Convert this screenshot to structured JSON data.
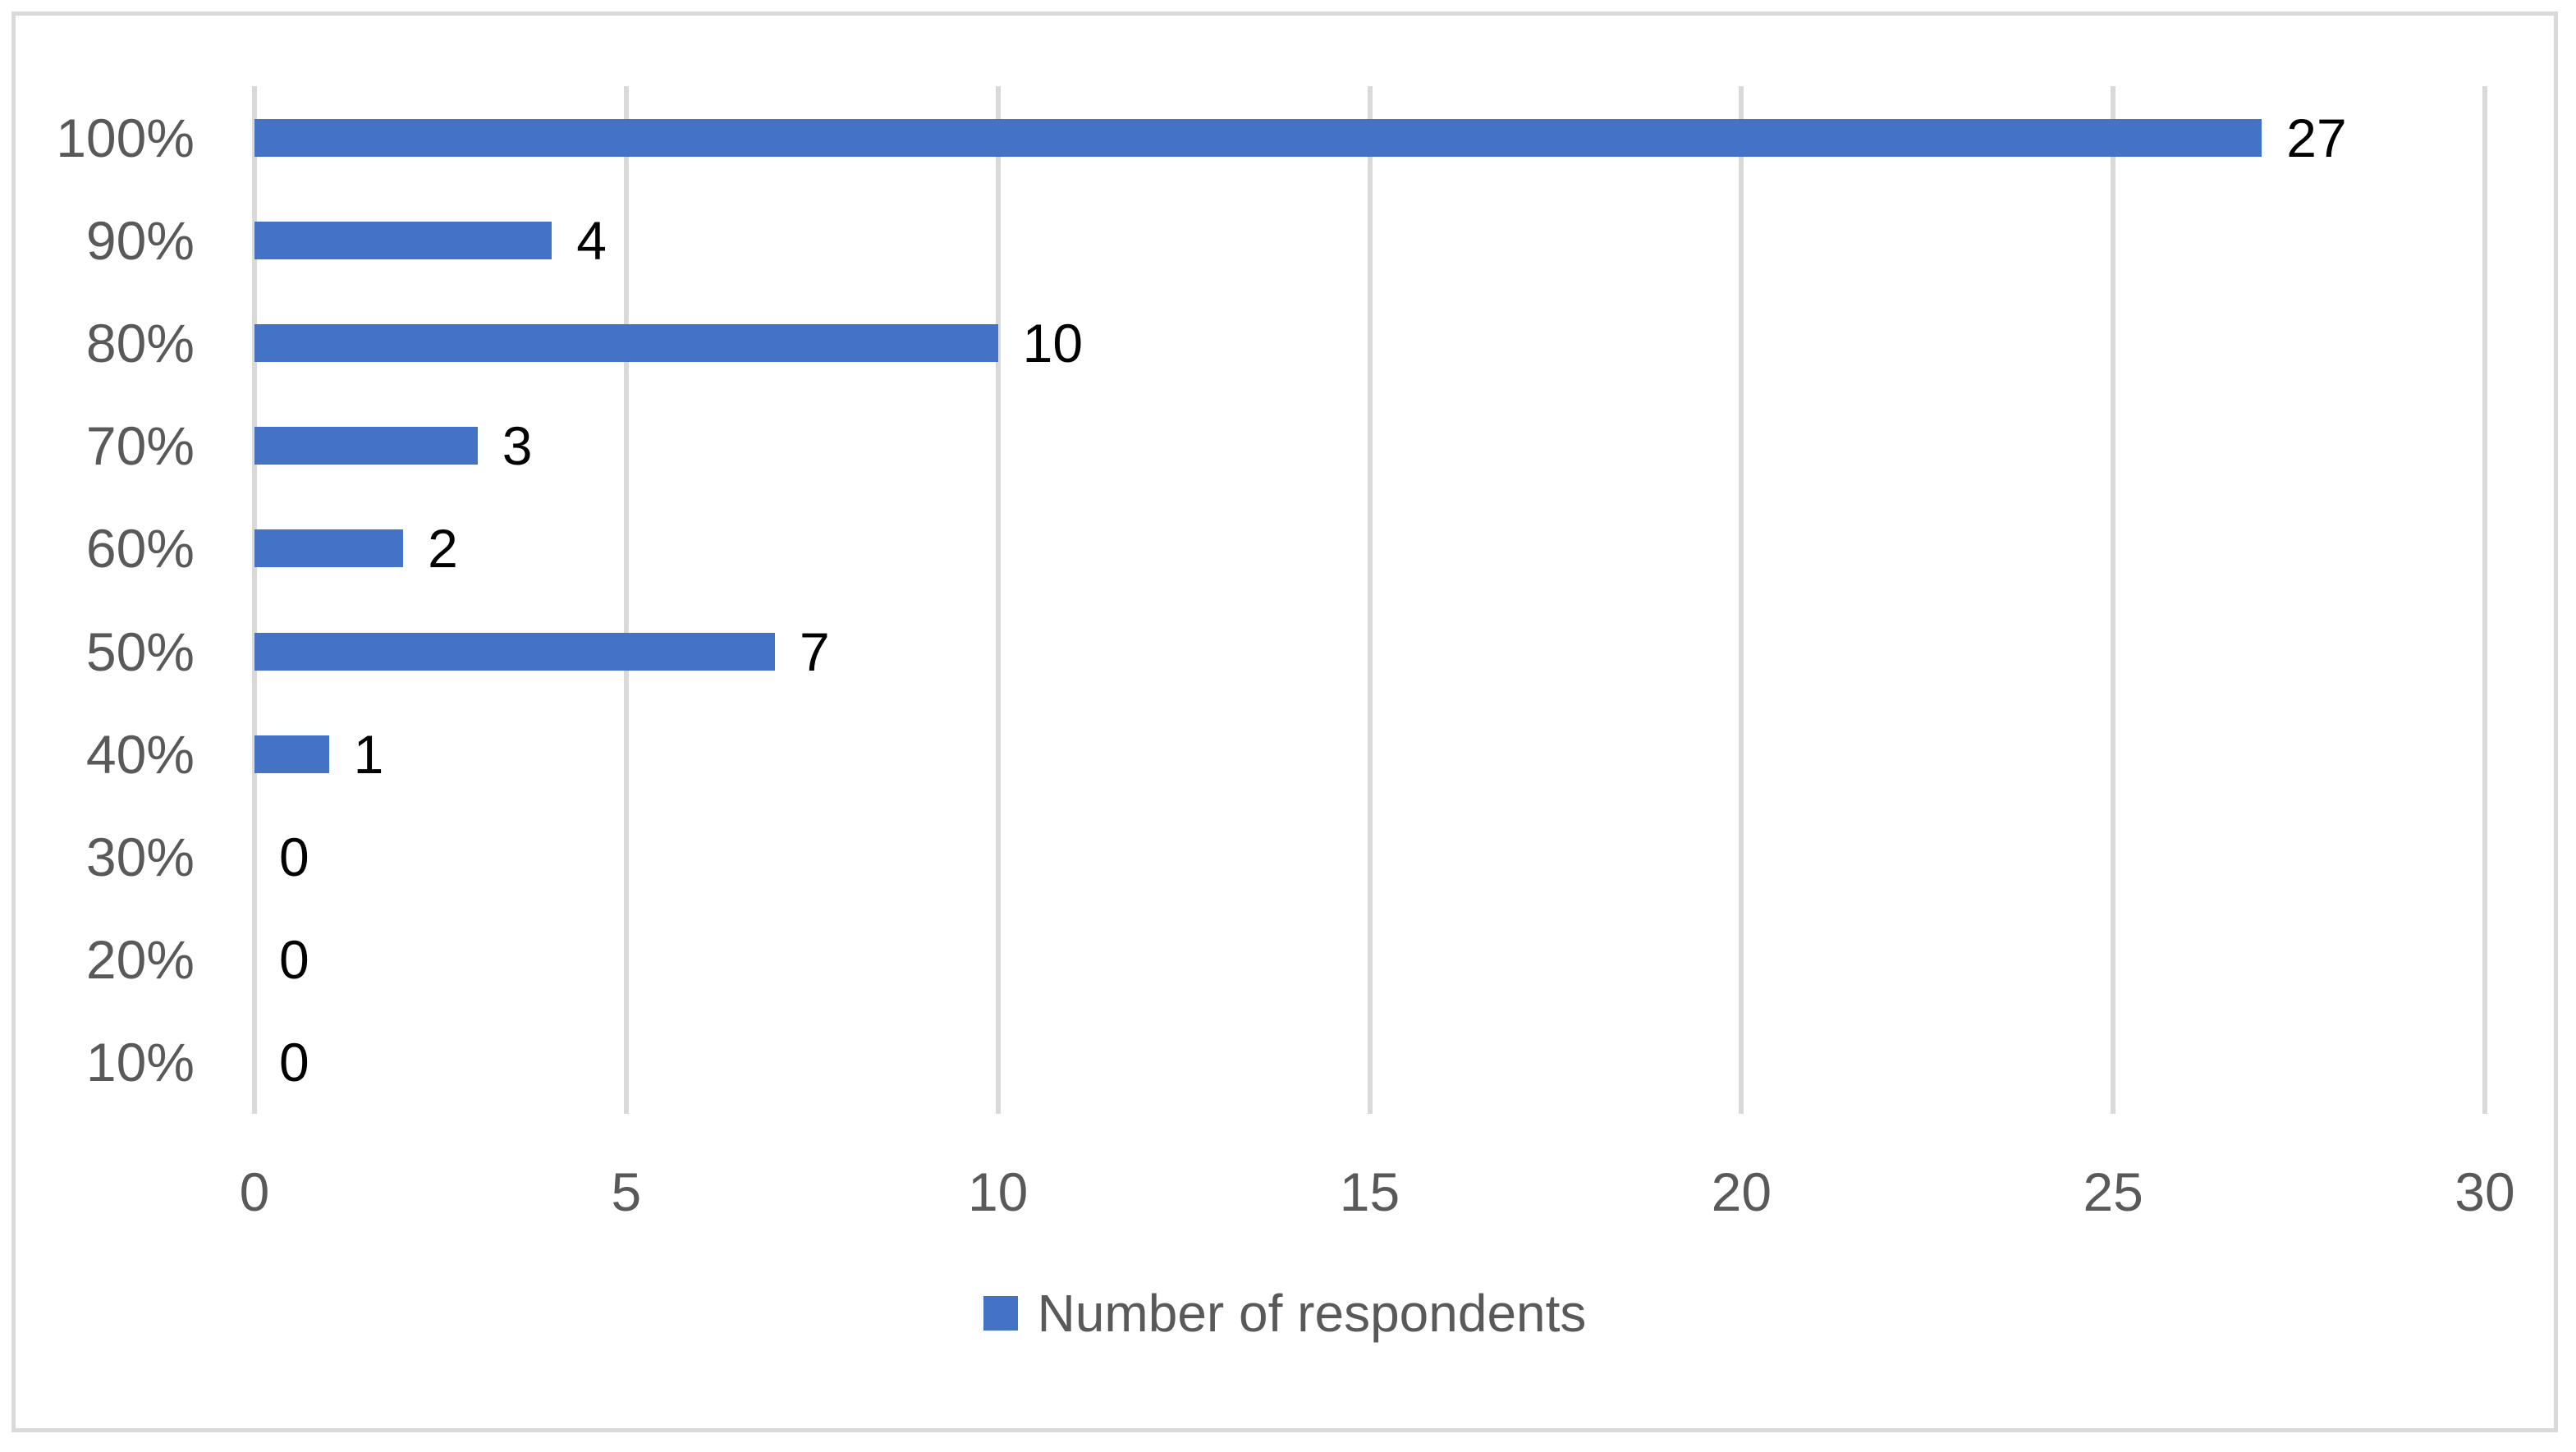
{
  "chart_data": {
    "type": "bar",
    "orientation": "horizontal",
    "categories": [
      "100%",
      "90%",
      "80%",
      "70%",
      "60%",
      "50%",
      "40%",
      "30%",
      "20%",
      "10%"
    ],
    "series": [
      {
        "name": "Number of respondents",
        "values": [
          27,
          4,
          10,
          3,
          2,
          7,
          1,
          0,
          0,
          0
        ]
      }
    ],
    "title": "",
    "xlabel": "",
    "ylabel": "",
    "xlim": [
      0,
      30
    ],
    "x_ticks": [
      0,
      5,
      10,
      15,
      20,
      25,
      30
    ],
    "grid": "vertical-only",
    "data_labels": true,
    "legend_position": "bottom-center",
    "colors": {
      "bar": "#4472C4",
      "gridline": "#D9D9D9",
      "frame_border": "#D9D9D9",
      "axis_text": "#595959",
      "data_label_text": "#000000",
      "background": "#FFFFFF"
    }
  }
}
